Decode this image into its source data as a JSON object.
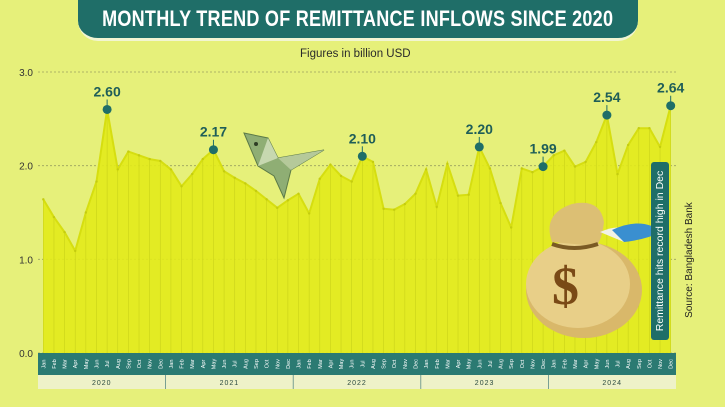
{
  "header": {
    "title": "MONTHLY TREND OF REMITTANCE INFLOWS SINCE 2020",
    "subtitle": "Figures in billion USD"
  },
  "side_note": "Remittance hits record high in Dec",
  "source": "Source: Bangladesh Bank",
  "colors": {
    "line": "#e2ea1a",
    "banner": "#1f6e68",
    "marker": "#1f6e68",
    "background": "#e6f07a"
  },
  "decorations": [
    "paper-bird-icon",
    "money-bag-icon"
  ],
  "chart_data": {
    "type": "area",
    "title": "MONTHLY TREND OF REMITTANCE INFLOWS SINCE 2020",
    "ylabel": "Figures in billion USD",
    "ylim": [
      0,
      3.0
    ],
    "yticks": [
      "0.0",
      "1.0",
      "2.0",
      "3.0"
    ],
    "grid": true,
    "month_labels": [
      "Jan",
      "Feb",
      "Mar",
      "Apr",
      "May",
      "Jun",
      "Jul",
      "Aug",
      "Sep",
      "Oct",
      "Nov",
      "Dec"
    ],
    "years": [
      "2020",
      "2021",
      "2022",
      "2023",
      "2024"
    ],
    "values": [
      1.64,
      1.45,
      1.29,
      1.09,
      1.5,
      1.83,
      2.6,
      1.96,
      2.15,
      2.11,
      2.07,
      2.05,
      1.96,
      1.78,
      1.91,
      2.07,
      2.17,
      1.94,
      1.87,
      1.81,
      1.73,
      1.64,
      1.55,
      1.63,
      1.7,
      1.49,
      1.86,
      2.01,
      1.89,
      1.83,
      2.1,
      2.04,
      1.54,
      1.53,
      1.59,
      1.7,
      1.96,
      1.56,
      2.02,
      1.68,
      1.69,
      2.2,
      1.97,
      1.6,
      1.34,
      1.97,
      1.93,
      1.99,
      2.11,
      2.16,
      1.99,
      2.04,
      2.25,
      2.54,
      1.91,
      2.22,
      2.4,
      2.4,
      2.2,
      2.64
    ],
    "annotations": [
      {
        "index": 6,
        "label": "2.60"
      },
      {
        "index": 16,
        "label": "2.17"
      },
      {
        "index": 30,
        "label": "2.10"
      },
      {
        "index": 41,
        "label": "2.20"
      },
      {
        "index": 47,
        "label": "1.99"
      },
      {
        "index": 53,
        "label": "2.54"
      },
      {
        "index": 59,
        "label": "2.64"
      }
    ]
  }
}
